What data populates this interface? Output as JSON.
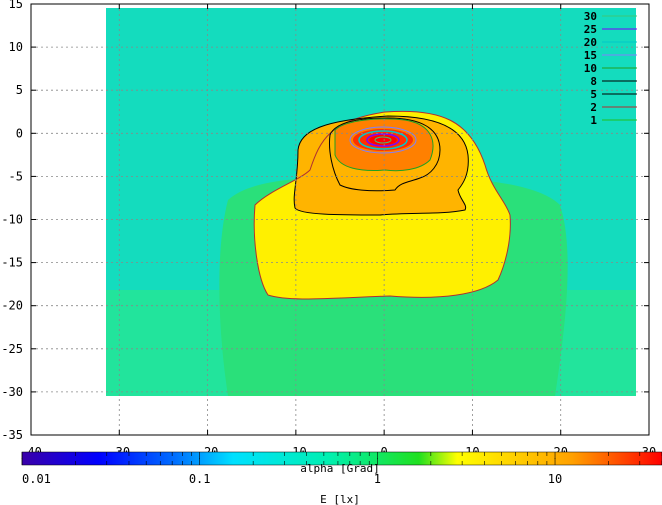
{
  "chart_data": {
    "type": "heatmap",
    "title": "",
    "xlabel": "alpha [Grad]",
    "ylabel": "",
    "xlim": [
      -40,
      30
    ],
    "ylim": [
      -35,
      15
    ],
    "grid": true,
    "x_ticks": [
      "-40",
      "-30",
      "-20",
      "-10",
      "0",
      "10",
      "20",
      "30"
    ],
    "y_ticks": [
      "15",
      "10",
      "5",
      "0",
      "-5",
      "-10",
      "-15",
      "-20",
      "-25",
      "-30",
      "-35"
    ],
    "data_extent": {
      "x": [
        -32,
        28
      ],
      "y": [
        -30.5,
        14.5
      ]
    },
    "contour_levels": [
      {
        "level": "30",
        "color": "#3cc878"
      },
      {
        "level": "25",
        "color": "#7a00ff"
      },
      {
        "level": "20",
        "color": "#00c8c8"
      },
      {
        "level": "15",
        "color": "#7f7fff"
      },
      {
        "level": "10",
        "color": "#20a020"
      },
      {
        "level": "8",
        "color": "#000000"
      },
      {
        "level": "5",
        "color": "#000000"
      },
      {
        "level": "2",
        "color": "#b03030"
      },
      {
        "level": "1",
        "color": "#20c020"
      }
    ],
    "colorbar": {
      "label": "E [lx]",
      "scale": "log",
      "ticks": [
        "0.01",
        "0.1",
        "1",
        "10"
      ],
      "range": [
        0.01,
        40
      ]
    }
  }
}
